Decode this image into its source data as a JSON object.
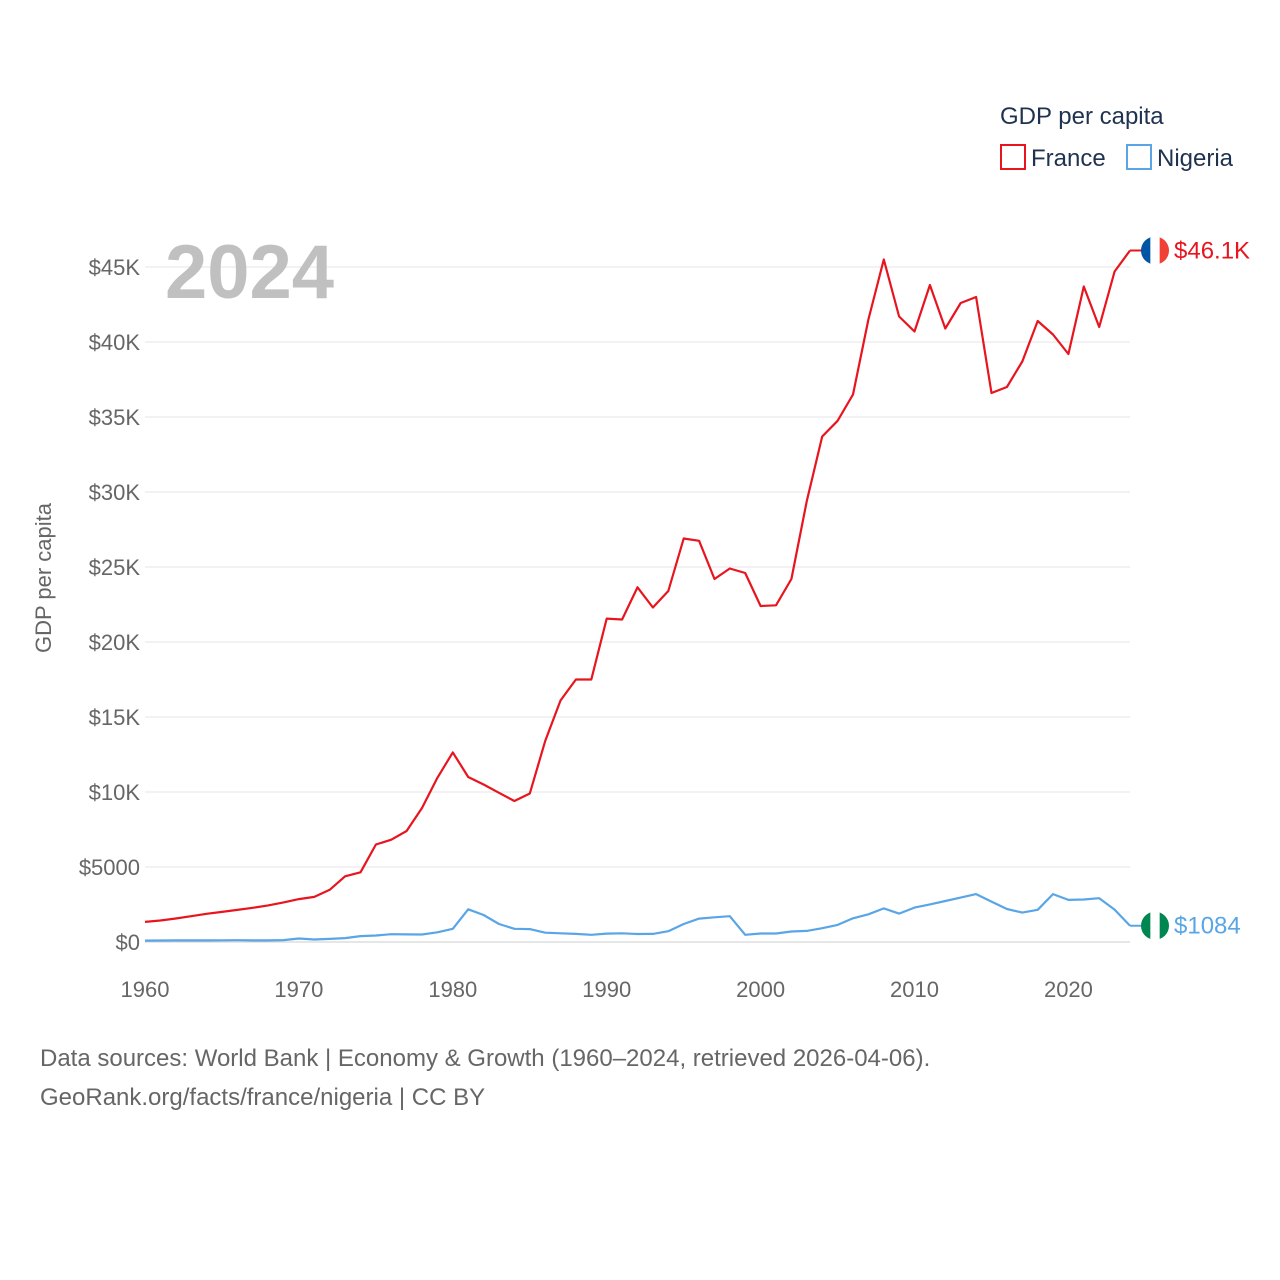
{
  "chart_data": {
    "type": "line",
    "title": "",
    "current_year": "2024",
    "xlabel": "",
    "ylabel": "GDP per capita",
    "xlim": [
      1960,
      2024
    ],
    "ylim": [
      0,
      45000
    ],
    "x_ticks": [
      1960,
      1970,
      1980,
      1990,
      2000,
      2010,
      2020
    ],
    "x_tick_labels": [
      "1960",
      "1970",
      "1980",
      "1990",
      "2000",
      "2010",
      "2020"
    ],
    "y_ticks": [
      0,
      5000,
      10000,
      15000,
      20000,
      25000,
      30000,
      35000,
      40000,
      45000
    ],
    "y_tick_labels": [
      "$0",
      "$5000",
      "$10K",
      "$15K",
      "$20K",
      "$25K",
      "$30K",
      "$35K",
      "$40K",
      "$45K"
    ],
    "grid": true,
    "legend": {
      "title": "GDP per capita",
      "placement": "top-right"
    },
    "x": [
      1960,
      1961,
      1962,
      1963,
      1964,
      1965,
      1966,
      1967,
      1968,
      1969,
      1970,
      1971,
      1972,
      1973,
      1974,
      1975,
      1976,
      1977,
      1978,
      1979,
      1980,
      1981,
      1982,
      1983,
      1984,
      1985,
      1986,
      1987,
      1988,
      1989,
      1990,
      1991,
      1992,
      1993,
      1994,
      1995,
      1996,
      1997,
      1998,
      1999,
      2000,
      2001,
      2002,
      2003,
      2004,
      2005,
      2006,
      2007,
      2008,
      2009,
      2010,
      2011,
      2012,
      2013,
      2014,
      2015,
      2016,
      2017,
      2018,
      2019,
      2020,
      2021,
      2022,
      2023,
      2024
    ],
    "series": [
      {
        "name": "France",
        "color": "#e8141e",
        "end_label": "$46.1K",
        "values": [
          1340,
          1430,
          1570,
          1720,
          1880,
          2010,
          2140,
          2280,
          2440,
          2640,
          2860,
          3010,
          3480,
          4380,
          4650,
          6500,
          6820,
          7400,
          8930,
          10950,
          12640,
          11000,
          10500,
          9950,
          9400,
          9900,
          13400,
          16100,
          17500,
          17500,
          21560,
          21500,
          23650,
          22300,
          23400,
          26900,
          26750,
          24200,
          24900,
          24600,
          22400,
          22450,
          24200,
          29400,
          33700,
          34750,
          36500,
          41500,
          45500,
          41700,
          40700,
          43800,
          40900,
          42600,
          43000,
          36600,
          37000,
          38700,
          41400,
          40500,
          39200,
          43700,
          41000,
          44700,
          46100
        ]
      },
      {
        "name": "Nigeria",
        "color": "#5aa5e6",
        "end_label": "$1084",
        "values": [
          95,
          100,
          105,
          110,
          110,
          115,
          120,
          110,
          110,
          125,
          230,
          170,
          210,
          260,
          390,
          430,
          520,
          510,
          500,
          650,
          880,
          2180,
          1800,
          1200,
          880,
          860,
          620,
          580,
          540,
          480,
          560,
          580,
          530,
          540,
          720,
          1200,
          1560,
          1650,
          1720,
          480,
          570,
          570,
          700,
          740,
          920,
          1140,
          1580,
          1850,
          2240,
          1890,
          2290,
          2510,
          2730,
          2960,
          3190,
          2690,
          2200,
          1960,
          2150,
          3190,
          2810,
          2830,
          2920,
          2160,
          1084
        ]
      }
    ]
  },
  "flags": {
    "France": {
      "colors": [
        "#0055a4",
        "#ffffff",
        "#ef4135"
      ]
    },
    "Nigeria": {
      "colors": [
        "#008751",
        "#ffffff",
        "#008751"
      ]
    }
  },
  "source": {
    "line1": "Data sources: World Bank | Economy & Growth (1960–2024, retrieved 2026-04-06).",
    "line2": "GeoRank.org/facts/france/nigeria | CC BY"
  }
}
